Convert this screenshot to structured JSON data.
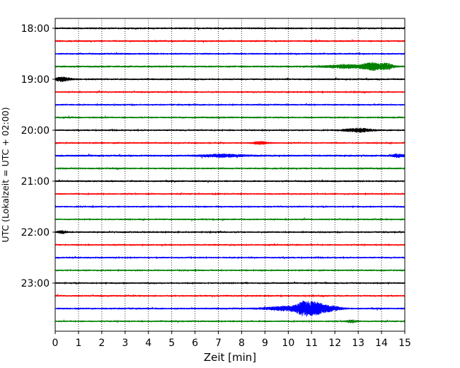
{
  "chart_data": {
    "type": "line",
    "title": "",
    "xlabel": "Zeit  [min]",
    "ylabel": "UTC (Lokalzeit = UTC + 02:00)",
    "xlim": [
      0,
      15
    ],
    "x_ticks": [
      0,
      1,
      2,
      3,
      4,
      5,
      6,
      7,
      8,
      9,
      10,
      11,
      12,
      13,
      14,
      15
    ],
    "y_ticks": [
      "18:00",
      "19:00",
      "20:00",
      "21:00",
      "22:00",
      "23:00"
    ],
    "grid": true,
    "color_cycle": [
      "#000000",
      "#ff0000",
      "#0000ff",
      "#008000"
    ],
    "series": [
      {
        "start": "18:00",
        "color": "#000000",
        "base_amp": 0.55,
        "events": []
      },
      {
        "start": "18:15",
        "color": "#ff0000",
        "base_amp": 0.55,
        "events": []
      },
      {
        "start": "18:30",
        "color": "#0000ff",
        "base_amp": 0.55,
        "events": []
      },
      {
        "start": "18:45",
        "color": "#008000",
        "base_amp": 0.6,
        "events": [
          {
            "t": 12.6,
            "w": 1.0,
            "amp": 1.1
          },
          {
            "t": 13.6,
            "w": 0.35,
            "amp": 2.2
          },
          {
            "t": 14.2,
            "w": 0.3,
            "amp": 2.0
          }
        ]
      },
      {
        "start": "19:00",
        "color": "#000000",
        "base_amp": 0.55,
        "events": [
          {
            "t": 0.3,
            "w": 0.35,
            "amp": 1.3
          }
        ]
      },
      {
        "start": "19:15",
        "color": "#ff0000",
        "base_amp": 0.5,
        "events": []
      },
      {
        "start": "19:30",
        "color": "#0000ff",
        "base_amp": 0.5,
        "events": []
      },
      {
        "start": "19:45",
        "color": "#008000",
        "base_amp": 0.55,
        "events": []
      },
      {
        "start": "20:00",
        "color": "#000000",
        "base_amp": 0.5,
        "events": [
          {
            "t": 13.0,
            "w": 0.6,
            "amp": 1.3
          }
        ]
      },
      {
        "start": "20:15",
        "color": "#ff0000",
        "base_amp": 0.5,
        "events": [
          {
            "t": 8.8,
            "w": 0.3,
            "amp": 0.9
          }
        ]
      },
      {
        "start": "20:30",
        "color": "#0000ff",
        "base_amp": 0.6,
        "events": [
          {
            "t": 7.2,
            "w": 0.9,
            "amp": 0.9
          },
          {
            "t": 14.7,
            "w": 0.25,
            "amp": 1.0
          }
        ]
      },
      {
        "start": "20:45",
        "color": "#008000",
        "base_amp": 0.55,
        "events": []
      },
      {
        "start": "21:00",
        "color": "#000000",
        "base_amp": 0.55,
        "events": []
      },
      {
        "start": "21:15",
        "color": "#ff0000",
        "base_amp": 0.5,
        "events": []
      },
      {
        "start": "21:30",
        "color": "#0000ff",
        "base_amp": 0.5,
        "events": []
      },
      {
        "start": "21:45",
        "color": "#008000",
        "base_amp": 0.5,
        "events": []
      },
      {
        "start": "22:00",
        "color": "#000000",
        "base_amp": 0.5,
        "events": [
          {
            "t": 0.3,
            "w": 0.2,
            "amp": 0.9
          }
        ]
      },
      {
        "start": "22:15",
        "color": "#ff0000",
        "base_amp": 0.5,
        "events": []
      },
      {
        "start": "22:30",
        "color": "#0000ff",
        "base_amp": 0.5,
        "events": []
      },
      {
        "start": "22:45",
        "color": "#008000",
        "base_amp": 0.5,
        "events": []
      },
      {
        "start": "23:00",
        "color": "#000000",
        "base_amp": 0.5,
        "events": []
      },
      {
        "start": "23:15",
        "color": "#ff0000",
        "base_amp": 0.5,
        "events": []
      },
      {
        "start": "23:30",
        "color": "#0000ff",
        "base_amp": 0.55,
        "events": [
          {
            "t": 9.9,
            "w": 0.9,
            "amp": 1.4
          },
          {
            "t": 10.7,
            "w": 0.35,
            "amp": 4.4
          },
          {
            "t": 11.2,
            "w": 0.3,
            "amp": 3.0
          },
          {
            "t": 11.7,
            "w": 0.5,
            "amp": 2.0
          }
        ]
      },
      {
        "start": "23:45",
        "color": "#008000",
        "base_amp": 0.5,
        "events": [
          {
            "t": 12.7,
            "w": 0.2,
            "amp": 0.9
          }
        ]
      }
    ]
  }
}
